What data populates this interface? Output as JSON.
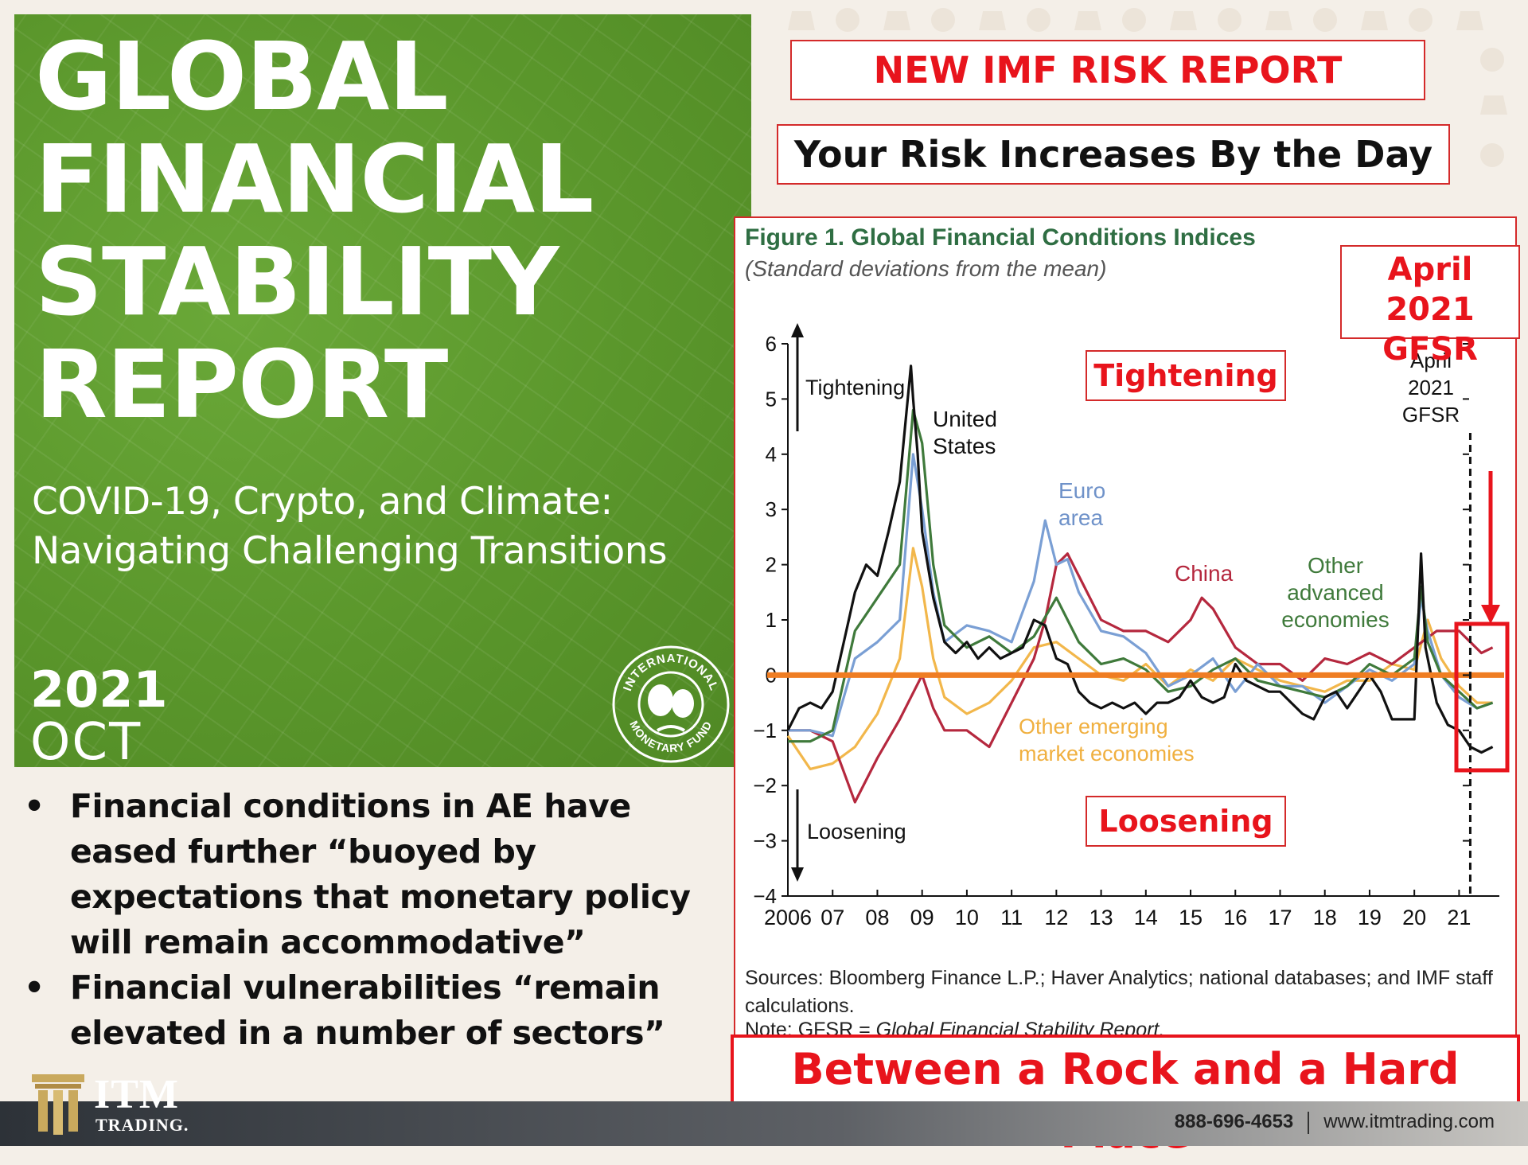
{
  "cover": {
    "title": "GLOBAL FINANCIAL STABILITY REPORT",
    "title_lines": [
      "GLOBAL",
      "FINANCIAL",
      "STABILITY",
      "REPORT"
    ],
    "subtitle_line1": "COVID-19, Crypto, and Climate:",
    "subtitle_line2": "Navigating Challenging Transitions",
    "year": "2021",
    "month": "OCT",
    "seal_top": "INTERNATIONAL",
    "seal_bottom": "MONETARY FUND"
  },
  "headline": "NEW IMF RISK REPORT",
  "subheadline": "Your Risk Increases By the Day",
  "figure": {
    "title": "Figure 1. Global Financial Conditions Indices",
    "subtitle": "(Standard deviations from the mean)",
    "sources": "Sources: Bloomberg Finance L.P.; Haver Analytics; national databases; and IMF staff calculations.",
    "note_prefix": "Note: GFSR = ",
    "note_italic": "Global Financial Stability Report."
  },
  "annotations": {
    "tightening": "Tightening",
    "loosening": "Loosening",
    "april_gfsr": "April 2021 GFSR",
    "april_lines": [
      "April",
      "2021",
      "GFSR"
    ],
    "banner": "Between a Rock and a Hard Place"
  },
  "chart_data": {
    "type": "line",
    "title": "Figure 1. Global Financial Conditions Indices",
    "subtitle": "(Standard deviations from the mean)",
    "ylim": [
      -4,
      6
    ],
    "y_ticks": [
      "6",
      "5",
      "4",
      "3",
      "2",
      "1",
      "0",
      "−1",
      "−2",
      "−3",
      "−4"
    ],
    "y_tick_values": [
      6,
      5,
      4,
      3,
      2,
      1,
      0,
      -1,
      -2,
      -3,
      -4
    ],
    "x_ticks": [
      "2006",
      "07",
      "08",
      "09",
      "10",
      "11",
      "12",
      "13",
      "14",
      "15",
      "16",
      "17",
      "18",
      "19",
      "20",
      "21"
    ],
    "xlim": [
      2006,
      2021.9
    ],
    "in_chart_labels": {
      "tightening": "Tightening",
      "loosening": "Loosening",
      "united_states": [
        "United",
        "States"
      ],
      "euro_area": [
        "Euro",
        "area"
      ],
      "china": "China",
      "other_advanced": [
        "Other",
        "advanced",
        "economies"
      ],
      "other_emerging": [
        "Other emerging",
        "market economies"
      ],
      "april_gfsr": [
        "April",
        "2021",
        "GFSR"
      ]
    },
    "vline_x": 2021.25,
    "zero_line_color": "#ef7d22",
    "series": [
      {
        "name": "United States",
        "color": "#111111",
        "x": [
          2006,
          2006.25,
          2006.5,
          2006.75,
          2007,
          2007.25,
          2007.5,
          2007.75,
          2008,
          2008.25,
          2008.5,
          2008.75,
          2008.8,
          2008.9,
          2009,
          2009.25,
          2009.5,
          2009.75,
          2010,
          2010.25,
          2010.5,
          2010.75,
          2011,
          2011.25,
          2011.5,
          2011.75,
          2012,
          2012.25,
          2012.5,
          2012.75,
          2013,
          2013.25,
          2013.5,
          2013.75,
          2014,
          2014.25,
          2014.5,
          2014.75,
          2015,
          2015.25,
          2015.5,
          2015.75,
          2016,
          2016.25,
          2016.5,
          2016.75,
          2017,
          2017.25,
          2017.5,
          2017.75,
          2018,
          2018.25,
          2018.5,
          2018.75,
          2019,
          2019.25,
          2019.5,
          2019.75,
          2020,
          2020.15,
          2020.25,
          2020.5,
          2020.75,
          2021,
          2021.25,
          2021.5,
          2021.75
        ],
        "y": [
          -1,
          -0.6,
          -0.5,
          -0.6,
          -0.3,
          0.6,
          1.5,
          2.0,
          1.8,
          2.6,
          3.5,
          5.6,
          5.0,
          4.0,
          2.6,
          1.4,
          0.6,
          0.4,
          0.6,
          0.3,
          0.5,
          0.3,
          0.4,
          0.5,
          1.0,
          0.9,
          0.3,
          0.2,
          -0.3,
          -0.5,
          -0.6,
          -0.5,
          -0.6,
          -0.5,
          -0.7,
          -0.5,
          -0.5,
          -0.4,
          -0.1,
          -0.4,
          -0.5,
          -0.4,
          0.2,
          -0.1,
          -0.2,
          -0.3,
          -0.3,
          -0.5,
          -0.7,
          -0.8,
          -0.4,
          -0.3,
          -0.6,
          -0.3,
          0,
          -0.3,
          -0.8,
          -0.8,
          -0.8,
          2.2,
          0.5,
          -0.5,
          -0.9,
          -1.0,
          -1.3,
          -1.4,
          -1.3
        ]
      },
      {
        "name": "Other advanced economies",
        "color": "#3f7a3b",
        "x": [
          2006,
          2006.5,
          2007,
          2007.5,
          2008,
          2008.5,
          2008.8,
          2009,
          2009.25,
          2009.5,
          2010,
          2010.5,
          2011,
          2011.5,
          2012,
          2012.5,
          2013,
          2013.5,
          2014,
          2014.5,
          2015,
          2015.5,
          2016,
          2016.5,
          2017,
          2017.5,
          2018,
          2018.5,
          2019,
          2019.5,
          2020,
          2020.15,
          2020.3,
          2020.6,
          2021,
          2021.4,
          2021.75
        ],
        "y": [
          -1.2,
          -1.2,
          -1.0,
          0.8,
          1.4,
          2.0,
          4.8,
          4.2,
          2.0,
          0.9,
          0.5,
          0.7,
          0.4,
          0.7,
          1.4,
          0.6,
          0.2,
          0.3,
          0.1,
          -0.3,
          -0.2,
          0.1,
          0.3,
          -0.1,
          -0.2,
          -0.3,
          -0.4,
          -0.2,
          0.2,
          0,
          0.3,
          1.6,
          0.6,
          0,
          -0.3,
          -0.6,
          -0.5
        ]
      },
      {
        "name": "Euro area",
        "color": "#7a9fd4",
        "x": [
          2006,
          2006.5,
          2007,
          2007.5,
          2008,
          2008.5,
          2008.8,
          2009,
          2009.25,
          2009.5,
          2010,
          2010.5,
          2011,
          2011.5,
          2011.75,
          2012,
          2012.25,
          2012.5,
          2013,
          2013.5,
          2014,
          2014.5,
          2015,
          2015.5,
          2016,
          2016.5,
          2017,
          2017.5,
          2018,
          2018.5,
          2019,
          2019.5,
          2020,
          2020.15,
          2020.3,
          2020.6,
          2021,
          2021.4,
          2021.75
        ],
        "y": [
          -1.0,
          -1.0,
          -1.1,
          0.3,
          0.6,
          1.0,
          4.0,
          3.0,
          1.5,
          0.6,
          0.9,
          0.8,
          0.6,
          1.7,
          2.8,
          2.0,
          2.1,
          1.5,
          0.8,
          0.7,
          0.4,
          -0.2,
          0,
          0.3,
          -0.3,
          0.2,
          -0.2,
          -0.2,
          -0.5,
          -0.2,
          0.1,
          -0.1,
          0.2,
          1.4,
          0.8,
          0,
          -0.4,
          -0.6,
          -0.5
        ]
      },
      {
        "name": "China",
        "color": "#b5283e",
        "x": [
          2006,
          2006.5,
          2007,
          2007.5,
          2008,
          2008.5,
          2008.75,
          2009,
          2009.25,
          2009.5,
          2010,
          2010.5,
          2011,
          2011.5,
          2011.75,
          2012,
          2012.25,
          2012.5,
          2013,
          2013.5,
          2014,
          2014.5,
          2015,
          2015.25,
          2015.5,
          2016,
          2016.5,
          2017,
          2017.5,
          2018,
          2018.5,
          2019,
          2019.5,
          2020,
          2020.5,
          2021,
          2021.25,
          2021.5,
          2021.75
        ],
        "y": [
          -1.0,
          -1.0,
          -1.2,
          -2.3,
          -1.5,
          -0.8,
          -0.4,
          0,
          -0.6,
          -1.0,
          -1.0,
          -1.3,
          -0.5,
          0.3,
          1.0,
          2.0,
          2.2,
          1.8,
          1.0,
          0.8,
          0.8,
          0.6,
          1.0,
          1.4,
          1.2,
          0.5,
          0.2,
          0.2,
          -0.1,
          0.3,
          0.2,
          0.4,
          0.2,
          0.5,
          0.8,
          0.8,
          0.6,
          0.4,
          0.5
        ]
      },
      {
        "name": "Other emerging market economies",
        "color": "#f2b74b",
        "x": [
          2006,
          2006.5,
          2007,
          2007.5,
          2008,
          2008.5,
          2008.8,
          2009,
          2009.25,
          2009.5,
          2010,
          2010.5,
          2011,
          2011.5,
          2012,
          2012.5,
          2013,
          2013.5,
          2014,
          2014.5,
          2015,
          2015.5,
          2016,
          2016.5,
          2017,
          2017.5,
          2018,
          2018.5,
          2019,
          2019.5,
          2020,
          2020.3,
          2020.6,
          2021,
          2021.4,
          2021.75
        ],
        "y": [
          -1.1,
          -1.7,
          -1.6,
          -1.3,
          -0.7,
          0.3,
          2.3,
          1.6,
          0.3,
          -0.4,
          -0.7,
          -0.5,
          -0.1,
          0.5,
          0.6,
          0.3,
          0,
          -0.1,
          0.2,
          -0.2,
          0.1,
          -0.1,
          0.3,
          0.1,
          -0.1,
          -0.2,
          -0.3,
          -0.1,
          -0.1,
          0.2,
          0.1,
          1.0,
          0.3,
          -0.2,
          -0.5,
          -0.5
        ]
      }
    ]
  },
  "bullets": [
    "Financial conditions in AE have eased further “buoyed by expectations that monetary policy will remain accommodative”",
    "Financial vulnerabilities “remain elevated in a number of sectors”"
  ],
  "footer": {
    "brand_main": "ITM",
    "brand_sub": "TRADING.",
    "phone": "888-696-4653",
    "website": "www.itmtrading.com"
  }
}
